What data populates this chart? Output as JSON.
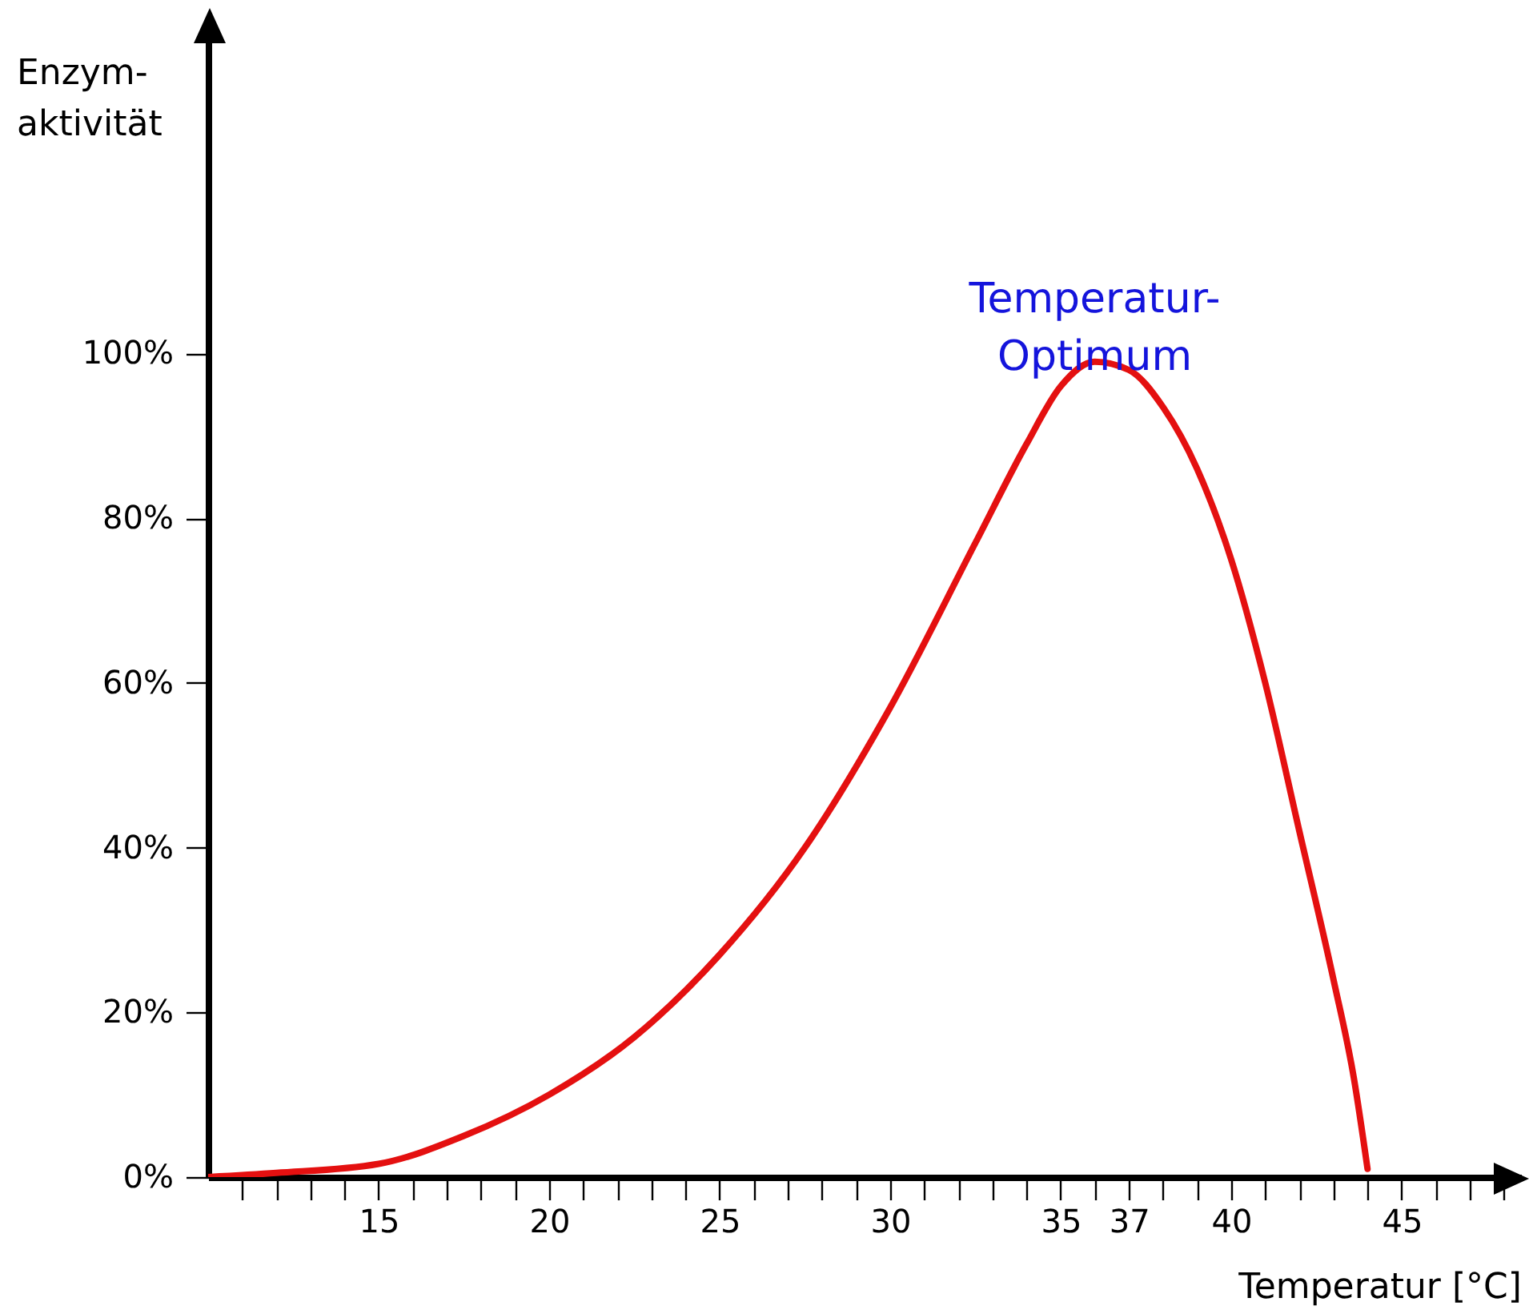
{
  "chart_data": {
    "type": "line",
    "xlabel": "Temperatur [°C]",
    "ylabel": "Enzym-\naktivität",
    "x": [
      10,
      12,
      15,
      17.5,
      20,
      22.5,
      25,
      27.5,
      30,
      32.5,
      34,
      35,
      36,
      37,
      38,
      39,
      40,
      41,
      42,
      43,
      43.6,
      44
    ],
    "series": [
      {
        "color": "#e41010",
        "values": [
          0,
          0.5,
          1.6,
          5,
          10,
          17,
          27,
          40,
          57,
          77,
          89,
          96,
          99,
          98,
          93.5,
          86,
          75,
          60,
          42,
          24,
          12,
          1
        ]
      }
    ],
    "xlim": [
      10,
      48.5
    ],
    "xticks": [
      {
        "value": 11,
        "label": null
      },
      {
        "value": 12,
        "label": null
      },
      {
        "value": 13,
        "label": null
      },
      {
        "value": 14,
        "label": null
      },
      15,
      {
        "value": 16,
        "label": null
      },
      {
        "value": 17,
        "label": null
      },
      {
        "value": 18,
        "label": null
      },
      {
        "value": 19,
        "label": null
      },
      20,
      {
        "value": 21,
        "label": null
      },
      {
        "value": 22,
        "label": null
      },
      {
        "value": 23,
        "label": null
      },
      {
        "value": 24,
        "label": null
      },
      25,
      {
        "value": 26,
        "label": null
      },
      {
        "value": 27,
        "label": null
      },
      {
        "value": 28,
        "label": null
      },
      {
        "value": 29,
        "label": null
      },
      30,
      {
        "value": 31,
        "label": null
      },
      {
        "value": 32,
        "label": null
      },
      {
        "value": 33,
        "label": null
      },
      {
        "value": 34,
        "label": null
      },
      35,
      {
        "value": 36,
        "label": null
      },
      37,
      {
        "value": 38,
        "label": null
      },
      {
        "value": 39,
        "label": null
      },
      40,
      {
        "value": 41,
        "label": null
      },
      {
        "value": 42,
        "label": null
      },
      {
        "value": 43,
        "label": null
      },
      {
        "value": 44,
        "label": null
      },
      45,
      {
        "value": 46,
        "label": null
      },
      {
        "value": 47,
        "label": null
      },
      {
        "value": 48,
        "label": null
      }
    ],
    "ylim": [
      0,
      140
    ],
    "yticks": [
      {
        "value": 0,
        "label": "0%"
      },
      {
        "value": 20,
        "label": "20%"
      },
      {
        "value": 40,
        "label": "40%"
      },
      {
        "value": 60,
        "label": "60%"
      },
      {
        "value": 80,
        "label": "80%"
      },
      {
        "value": 100,
        "label": "100%"
      }
    ],
    "annotations": [
      {
        "text": "Temperatur-\nOptimum",
        "x": 36,
        "y": 99
      }
    ],
    "grid": false,
    "marker": "none",
    "line_style": "solid"
  }
}
